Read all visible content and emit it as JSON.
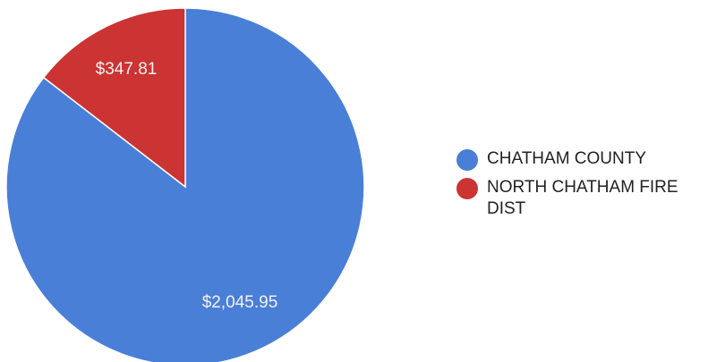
{
  "chart_data": {
    "type": "pie",
    "slices": [
      {
        "label": "CHATHAM COUNTY",
        "value": 2045.95,
        "display": "$2,045.95",
        "color": "#4a7fd8"
      },
      {
        "label": "NORTH CHATHAM FIRE DIST",
        "value": 347.81,
        "display": "$347.81",
        "color": "#cc3333"
      }
    ],
    "legend_position": "right",
    "start_angle": "top, clockwise"
  }
}
